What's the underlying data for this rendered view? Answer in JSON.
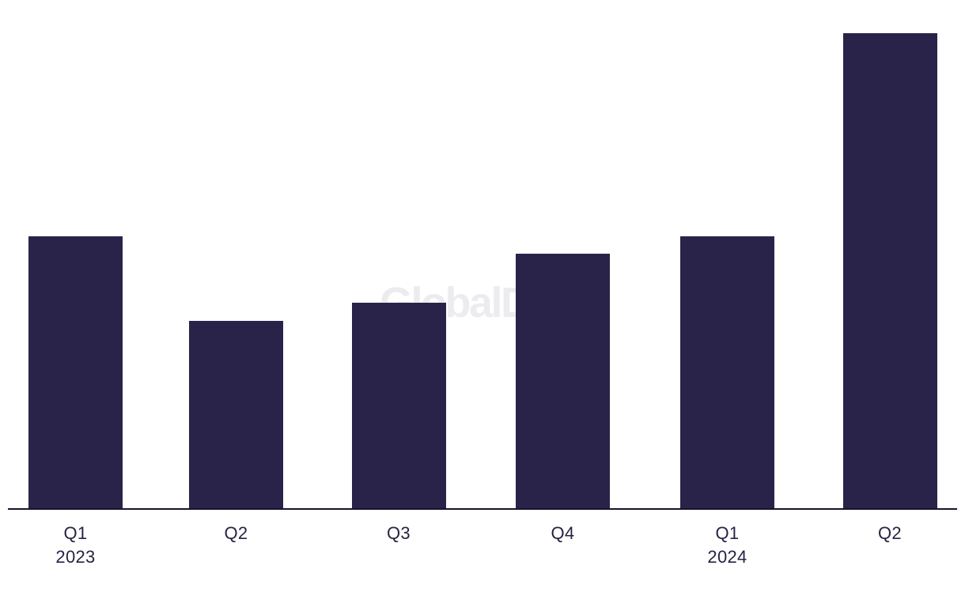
{
  "chart": {
    "background": "#ffffff",
    "watermark": {
      "text": "GlobalData"
    },
    "colors": {
      "bar": "#292349",
      "axis_line": "#15152e",
      "label": "#272343",
      "watermark": "#bebeca"
    }
  },
  "chart_data": {
    "type": "bar",
    "title": "",
    "xlabel": "",
    "ylabel": "",
    "categories": [
      "Q1 2023",
      "Q2 2023",
      "Q3 2023",
      "Q4 2023",
      "Q1 2024",
      "Q2 2024"
    ],
    "values": [
      57.2,
      39.4,
      43.2,
      53.6,
      57.2,
      100
    ],
    "value_units": "relative bar height, % of tallest bar (chart displays no numeric value axis, no gridlines)",
    "ylim": [
      0,
      100
    ],
    "grid": false,
    "legend": false,
    "bar_color": "#292349",
    "x_axis": {
      "tick_labels": [
        {
          "line1": "Q1",
          "line2": "2023"
        },
        {
          "line1": "Q2",
          "line2": ""
        },
        {
          "line1": "Q3",
          "line2": ""
        },
        {
          "line1": "Q4",
          "line2": ""
        },
        {
          "line1": "Q1",
          "line2": "2024"
        },
        {
          "line1": "Q2",
          "line2": ""
        }
      ]
    }
  }
}
